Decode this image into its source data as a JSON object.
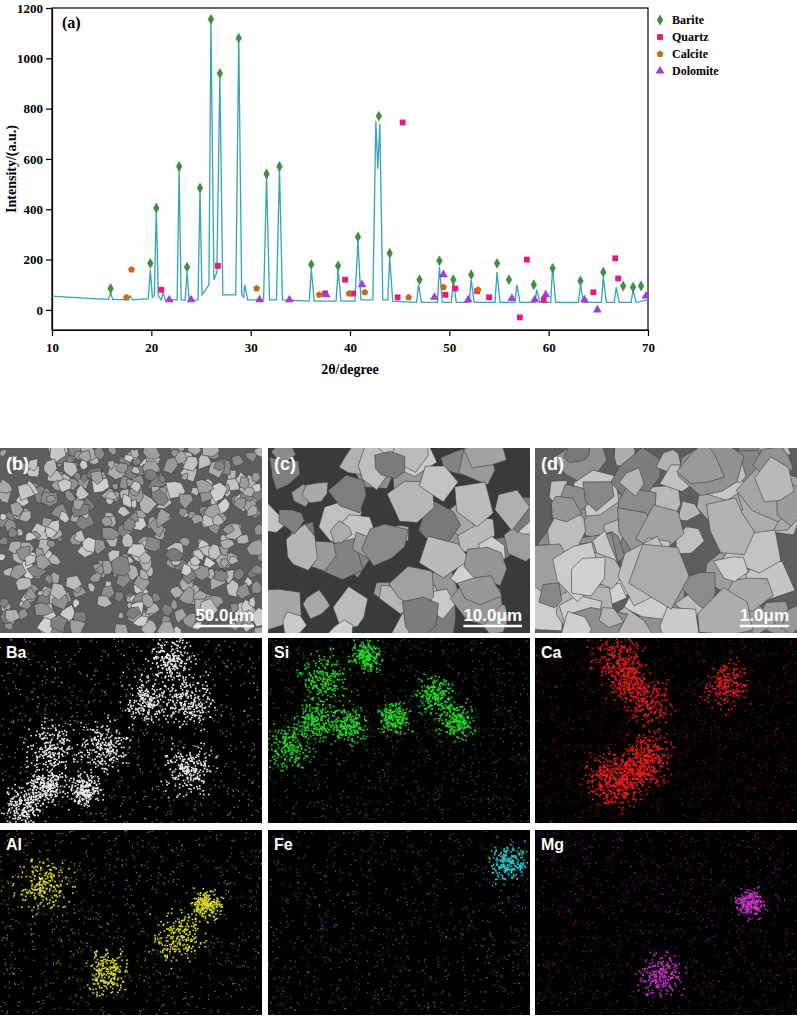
{
  "chart_data": {
    "type": "line",
    "title": "(a)",
    "x_label": "2θ/degree",
    "y_label": "Intensity/(a.u.)",
    "xlim": [
      10,
      70
    ],
    "xticks": [
      10,
      20,
      30,
      40,
      50,
      60,
      70
    ],
    "ylim": [
      -80,
      1200
    ],
    "yticks": [
      0,
      200,
      400,
      600,
      800,
      1000,
      1200
    ],
    "grid": false,
    "legend": "upper right",
    "series": [
      {
        "type": "line",
        "color": "#35a3b8",
        "x": [
          10,
          12,
          14,
          15.7,
          15.9,
          16.1,
          17.7,
          17.9,
          18.1,
          19.7,
          19.9,
          20.1,
          20.3,
          20.5,
          20.7,
          21.0,
          21.2,
          21.4,
          22.6,
          22.8,
          23.0,
          23.4,
          23.6,
          23.8,
          24.7,
          24.9,
          25.1,
          25.8,
          26.0,
          26.3,
          26.6,
          26.9,
          27.2,
          28.5,
          28.8,
          29.1,
          29.3,
          29.4,
          29.7,
          31.3,
          31.6,
          31.9,
          32.6,
          32.9,
          33.2,
          35.9,
          36.1,
          36.4,
          38.6,
          38.8,
          39.1,
          40.5,
          40.8,
          41.1,
          42.3,
          42.6,
          42.8,
          43.0,
          43.3,
          43.8,
          44.0,
          44.3,
          46.7,
          46.9,
          47.2,
          48.8,
          49.0,
          49.3,
          50.2,
          50.4,
          50.7,
          52.0,
          52.2,
          52.5,
          54.6,
          54.8,
          55.1,
          56.6,
          56.8,
          57.1,
          58.6,
          58.8,
          59.1,
          60.2,
          60.4,
          60.7,
          63.0,
          63.2,
          63.5,
          65.3,
          65.5,
          65.8,
          66.6,
          66.8,
          67.1,
          68.3,
          68.5,
          68.8,
          70
        ],
        "values": [
          55,
          50,
          45,
          42,
          70,
          42,
          40,
          55,
          40,
          45,
          160,
          50,
          60,
          400,
          55,
          40,
          70,
          40,
          40,
          560,
          40,
          38,
          150,
          38,
          40,
          480,
          60,
          100,
          1150,
          120,
          150,
          930,
          60,
          60,
          1080,
          60,
          50,
          100,
          40,
          40,
          530,
          40,
          40,
          560,
          40,
          35,
          160,
          35,
          35,
          160,
          35,
          35,
          280,
          40,
          40,
          750,
          560,
          740,
          40,
          40,
          210,
          35,
          30,
          100,
          30,
          30,
          170,
          30,
          30,
          120,
          30,
          30,
          120,
          30,
          30,
          150,
          30,
          30,
          100,
          30,
          30,
          80,
          30,
          30,
          170,
          30,
          30,
          100,
          30,
          30,
          130,
          30,
          30,
          90,
          30,
          30,
          80,
          30,
          40
        ]
      },
      {
        "type": "scatter",
        "name": "Barite",
        "color": "#3f8f3f",
        "marker": "diamond",
        "x": [
          15.9,
          19.9,
          20.5,
          22.8,
          23.6,
          24.9,
          26.0,
          26.9,
          28.8,
          31.6,
          32.9,
          36.1,
          38.8,
          40.8,
          42.9,
          44.0,
          47.0,
          49.0,
          50.4,
          52.2,
          54.8,
          56.0,
          58.5,
          60.4,
          63.2,
          65.5,
          67.5,
          68.5,
          69.3
        ],
        "values": [
          85,
          185,
          405,
          570,
          170,
          485,
          1155,
          940,
          1080,
          540,
          570,
          180,
          175,
          290,
          770,
          225,
          120,
          195,
          120,
          140,
          185,
          120,
          100,
          165,
          115,
          150,
          95,
          90,
          95
        ]
      },
      {
        "type": "scatter",
        "name": "Quartz",
        "color": "#e8197d",
        "marker": "square",
        "x": [
          21.0,
          26.7,
          37.5,
          39.5,
          40.3,
          44.8,
          45.3,
          49.6,
          50.6,
          52.8,
          54.0,
          57.1,
          57.8,
          59.5,
          64.5,
          66.7,
          67.0
        ],
        "values": [
          80,
          175,
          65,
          120,
          65,
          50,
          745,
          60,
          85,
          75,
          50,
          -30,
          200,
          40,
          70,
          205,
          125
        ]
      },
      {
        "type": "scatter",
        "name": "Calcite",
        "color": "#c8691c",
        "marker": "pentagon",
        "x": [
          17.5,
          18.0,
          30.6,
          36.9,
          39.9,
          41.5,
          45.9,
          49.4,
          52.9
        ],
        "values": [
          50,
          160,
          85,
          60,
          65,
          70,
          50,
          90,
          80
        ]
      },
      {
        "type": "scatter",
        "name": "Dolomite",
        "color": "#9b3fe0",
        "marker": "triangle",
        "x": [
          21.8,
          24.0,
          30.9,
          33.9,
          37.6,
          41.2,
          48.5,
          49.4,
          51.9,
          56.3,
          58.6,
          59.7,
          63.6,
          64.9,
          69.8
        ],
        "values": [
          40,
          40,
          40,
          40,
          60,
          100,
          50,
          140,
          40,
          45,
          40,
          60,
          40,
          0,
          55
        ]
      }
    ]
  },
  "panels": {
    "sem": [
      {
        "label": "(b)",
        "scale_bar": "50.0μm"
      },
      {
        "label": "(c)",
        "scale_bar": "10.0μm"
      },
      {
        "label": "(d)",
        "scale_bar": "1.0μm"
      }
    ],
    "eds_maps": [
      {
        "element": "Ba",
        "color": "#f0f0f0"
      },
      {
        "element": "Si",
        "color": "#22dd22"
      },
      {
        "element": "Ca",
        "color": "#ee1a1a"
      },
      {
        "element": "Al",
        "color": "#dede22"
      },
      {
        "element": "Fe",
        "color": "#22cccc"
      },
      {
        "element": "Mg",
        "color": "#cc33cc"
      }
    ]
  }
}
